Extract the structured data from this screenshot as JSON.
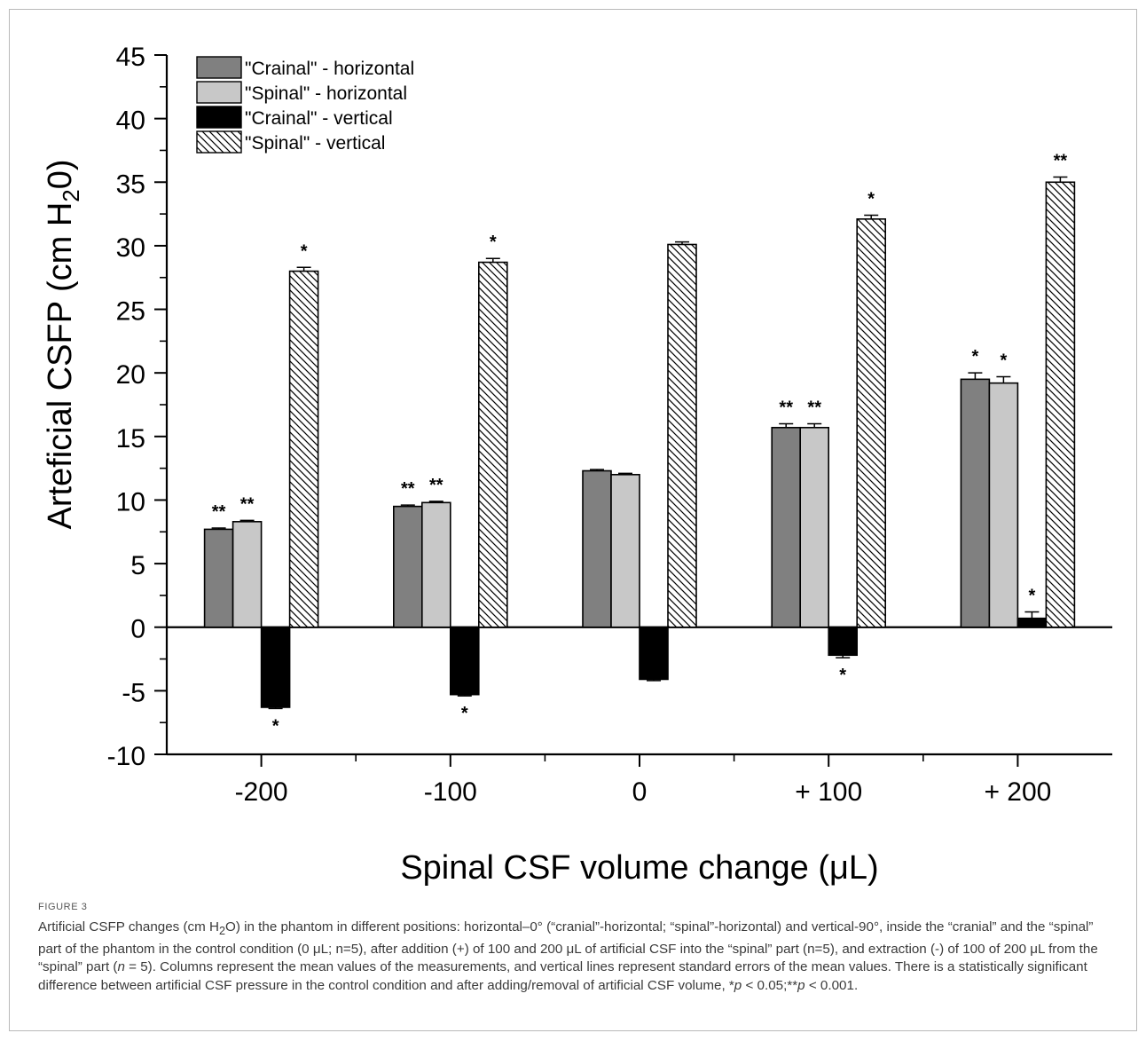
{
  "chart_data": {
    "type": "bar",
    "ylabel": "Arteficial CSFP (cm H",
    "ylabel_sub": "2",
    "ylabel_tail": "0)",
    "xlabel": "Spinal CSF volume change (μL)",
    "ylim": [
      -10,
      45
    ],
    "yticks": [
      -10,
      -5,
      0,
      5,
      10,
      15,
      20,
      25,
      30,
      35,
      40,
      45
    ],
    "categories": [
      "-200",
      "-100",
      "0",
      "+ 100",
      "+ 200"
    ],
    "legend_position": "top-left",
    "grid": false,
    "series": [
      {
        "name": "\"Crainal\" - horizontal",
        "color": "#808080",
        "pattern": "solid",
        "values": [
          7.7,
          9.5,
          12.3,
          15.7,
          19.5
        ],
        "errors": [
          0.1,
          0.1,
          0.1,
          0.3,
          0.5
        ],
        "annotations": [
          "**",
          "**",
          "",
          "**",
          "*"
        ]
      },
      {
        "name": "\"Spinal\"  - horizontal",
        "color": "#c8c8c8",
        "pattern": "solid",
        "values": [
          8.3,
          9.8,
          12.0,
          15.7,
          19.2
        ],
        "errors": [
          0.1,
          0.1,
          0.1,
          0.3,
          0.5
        ],
        "annotations": [
          "**",
          "**",
          "",
          "**",
          "*"
        ]
      },
      {
        "name": "\"Crainal\" - vertical",
        "color": "#000000",
        "pattern": "solid",
        "values": [
          -6.3,
          -5.3,
          -4.1,
          -2.2,
          0.7
        ],
        "errors": [
          0.1,
          0.1,
          0.1,
          0.2,
          0.5
        ],
        "annotations": [
          "*",
          "*",
          "",
          "*",
          "*"
        ]
      },
      {
        "name": "\"Spinal\"  - vertical",
        "color": "#ffffff",
        "pattern": "hatch",
        "values": [
          28.0,
          28.7,
          30.1,
          32.1,
          35.0
        ],
        "errors": [
          0.3,
          0.3,
          0.2,
          0.3,
          0.4
        ],
        "annotations": [
          "*",
          "*",
          "",
          "*",
          "**"
        ]
      }
    ]
  },
  "figure": {
    "label": "FIGURE 3",
    "caption_html": "Artificial CSFP changes (cm H<sub>2</sub>O) in the phantom in different positions: horizontal–0° (“cranial”-horizontal; “spinal”-horizontal) and vertical-90°, inside the “cranial” and the “spinal” part of the phantom in the control condition (0 μL; n=5), after addition (+) of 100 and 200 μL of artificial CSF into the “spinal” part (n=5), and extraction (-) of 100 of 200 μL from the “spinal” part (<i>n</i> = 5). Columns represent the mean values of the measurements, and vertical lines represent standard errors of the mean values. There is a statistically significant difference between artificial CSF pressure in the control condition and after adding/removal of artificial CSF volume, *<i>p</i> &lt; 0.05;**<i>p</i> &lt; 0.001."
  }
}
